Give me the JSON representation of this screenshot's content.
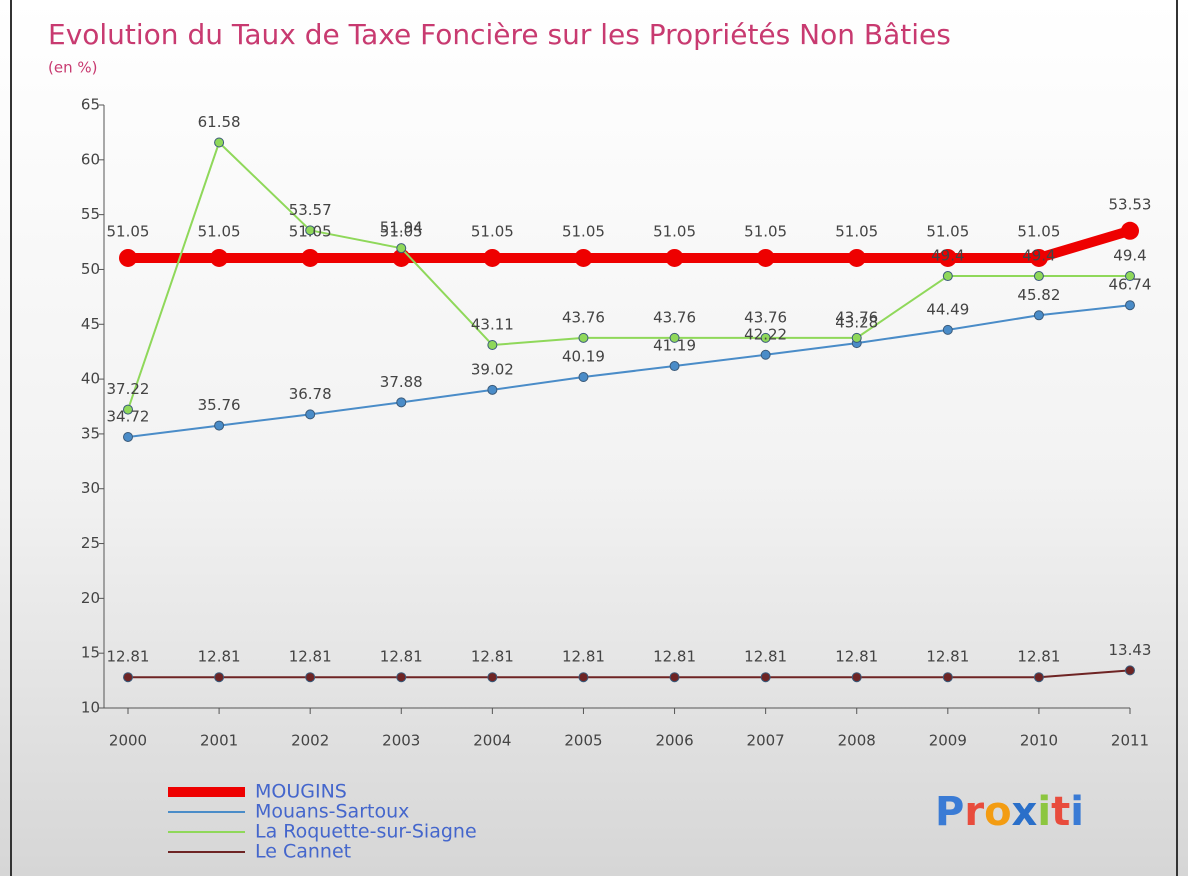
{
  "chart_data": {
    "type": "line",
    "title": "Evolution du Taux de Taxe Foncière sur les Propriétés Non Bâties",
    "subtitle": "(en %)",
    "x": [
      2000,
      2001,
      2002,
      2003,
      2004,
      2005,
      2006,
      2007,
      2008,
      2009,
      2010,
      2011
    ],
    "xlim": [
      2000,
      2011
    ],
    "ylim": [
      10,
      65
    ],
    "yticks": [
      10,
      15,
      20,
      25,
      30,
      35,
      40,
      45,
      50,
      55,
      60,
      65
    ],
    "grid": false,
    "legend": "bottom-left",
    "series": [
      {
        "name": "MOUGINS",
        "color": "#ee0000",
        "values": [
          51.05,
          51.05,
          51.05,
          51.05,
          51.05,
          51.05,
          51.05,
          51.05,
          51.05,
          51.05,
          51.05,
          53.53
        ]
      },
      {
        "name": "Mouans-Sartoux",
        "color": "#4a8cc8",
        "values": [
          34.72,
          35.76,
          36.78,
          37.88,
          39.02,
          40.19,
          41.19,
          42.22,
          43.28,
          44.49,
          45.82,
          46.74
        ]
      },
      {
        "name": "La Roquette-sur-Siagne",
        "color": "#8fd85a",
        "values": [
          37.22,
          61.58,
          53.57,
          51.94,
          43.11,
          43.76,
          43.76,
          43.76,
          43.76,
          49.4,
          49.4,
          49.4
        ]
      },
      {
        "name": "Le Cannet",
        "color": "#6e2424",
        "values": [
          12.81,
          12.81,
          12.81,
          12.81,
          12.81,
          12.81,
          12.81,
          12.81,
          12.81,
          12.81,
          12.81,
          13.43
        ]
      }
    ],
    "logo": "Proxiti"
  }
}
